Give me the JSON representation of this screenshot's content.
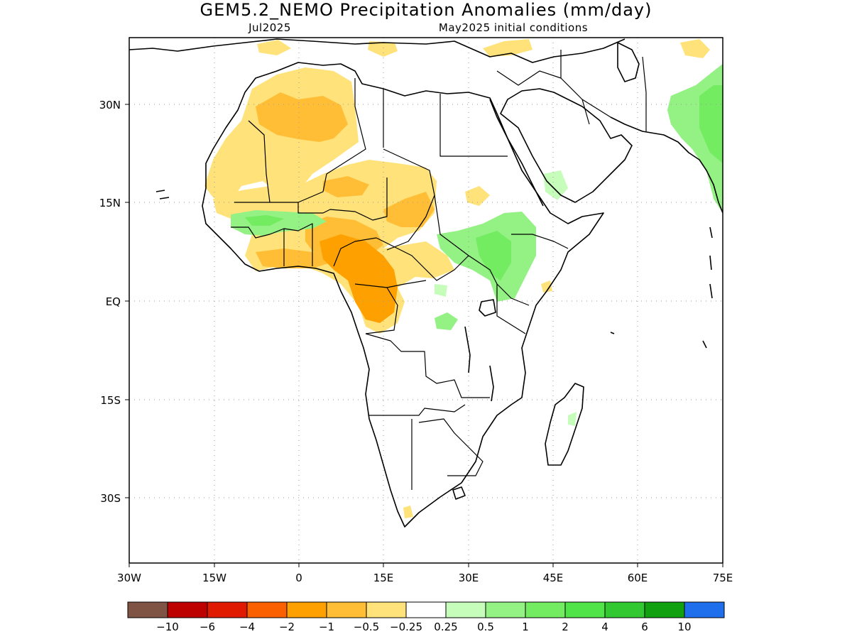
{
  "title": "GEM5.2_NEMO Precipitation Anomalies (mm/day)",
  "subtitle_left": "Jul2025",
  "subtitle_right": "May2025 initial conditions",
  "axes": {
    "lat_ticks": [
      "30N",
      "15N",
      "EQ",
      "15S",
      "30S"
    ],
    "lon_ticks": [
      "30W",
      "15W",
      "0",
      "15E",
      "30E",
      "45E",
      "60E",
      "75E"
    ],
    "lon_range": [
      -30,
      75
    ],
    "lat_range": [
      -40,
      40
    ],
    "grid": true
  },
  "colorbar": {
    "colors": [
      "#7f5444",
      "#bd0000",
      "#e01a00",
      "#fa5f00",
      "#fea100",
      "#ffbe36",
      "#ffe27a",
      "#ffffff",
      "#c6fdbb",
      "#94f184",
      "#74ec62",
      "#50e449",
      "#32c832",
      "#11a00f",
      "#1f6fed"
    ],
    "labels": [
      "-10",
      "-6",
      "-4",
      "-2",
      "-1",
      "-0.5",
      "-0.25",
      "0.25",
      "0.5",
      "1",
      "2",
      "4",
      "6",
      "10"
    ]
  },
  "legend_values": {
    "orange_light": "#ffe27a",
    "orange_mid": "#ffbe36",
    "orange": "#fea100",
    "green_light": "#c6fdbb",
    "green_mid": "#94f184",
    "green": "#74ec62"
  }
}
